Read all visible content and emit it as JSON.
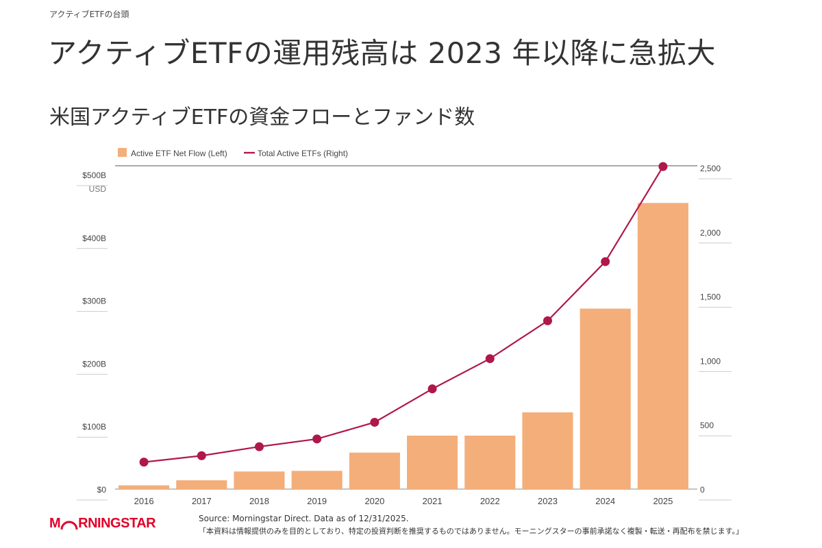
{
  "header": {
    "eyebrow": "アクティブETFの台頭",
    "headline": "アクティブETFの運用残高は 2023 年以降に急拡大",
    "subhead": "米国アクティブETFの資金フローとファンド数"
  },
  "chart_data": {
    "type": "bar",
    "categories": [
      "2016",
      "2017",
      "2018",
      "2019",
      "2020",
      "2021",
      "2022",
      "2023",
      "2024",
      "2025"
    ],
    "series": [
      {
        "name": "Active ETF Net Flow (Left)",
        "kind": "bar",
        "axis": "left",
        "color": "#f4ae7a",
        "values": [
          6,
          14,
          28,
          29,
          58,
          85,
          85,
          122,
          287,
          455
        ]
      },
      {
        "name": "Total Active ETFs (Right)",
        "kind": "line",
        "axis": "right",
        "color": "#b0174a",
        "values": [
          210,
          260,
          330,
          390,
          520,
          780,
          1015,
          1310,
          1770,
          2510
        ]
      }
    ],
    "left_axis": {
      "ticks": [
        0,
        100,
        200,
        300,
        400,
        500
      ],
      "tick_labels": [
        "$0",
        "$100B",
        "$200B",
        "$300B",
        "$400B",
        "$500B"
      ],
      "unit_label": "USD",
      "ylim": [
        0,
        500
      ]
    },
    "right_axis": {
      "ticks": [
        0,
        500,
        1000,
        1500,
        2000,
        2500
      ],
      "tick_labels": [
        "0",
        "500",
        "1,000",
        "1,500",
        "2,000",
        "2,500"
      ],
      "ylim": [
        0,
        2500
      ]
    },
    "legend_position": "top-left",
    "grid": false
  },
  "footer": {
    "source": "Source: Morningstar Direct. Data as of 12/31/2025.",
    "disclaimer": "「本資料は情報提供のみを目的としており、特定の投資判断を推奨するものではありません。モーニングスターの事前承諾なく複製・転送・再配布を禁じます。」",
    "logo_text": "MORNINGSTAR",
    "logo_color": "#e0002a"
  }
}
